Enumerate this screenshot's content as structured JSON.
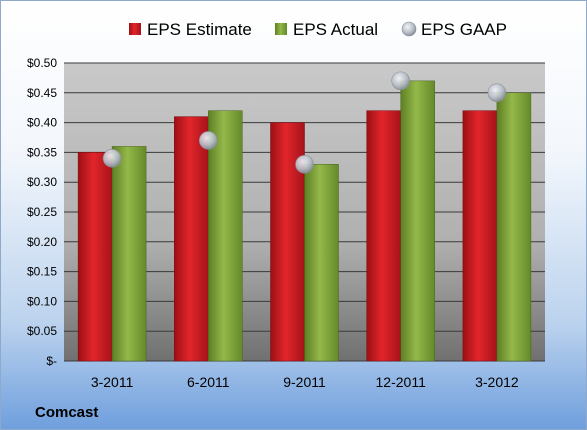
{
  "company": "Comcast",
  "colors": {
    "estimate": "#c8161d",
    "actual": "#7fa33a",
    "gaap": "#b8bec8"
  },
  "chart_data": {
    "type": "bar",
    "categories": [
      "3-2011",
      "6-2011",
      "9-2011",
      "12-2011",
      "3-2012"
    ],
    "series": [
      {
        "name": "EPS Estimate",
        "kind": "bar",
        "values": [
          0.35,
          0.41,
          0.4,
          0.42,
          0.42
        ]
      },
      {
        "name": "EPS Actual",
        "kind": "bar",
        "values": [
          0.36,
          0.42,
          0.33,
          0.47,
          0.45
        ]
      },
      {
        "name": "EPS GAAP",
        "kind": "scatter",
        "values": [
          0.34,
          0.37,
          0.33,
          0.47,
          0.45
        ]
      }
    ],
    "ylim": [
      0,
      0.5
    ],
    "yticks": [
      0,
      0.05,
      0.1,
      0.15,
      0.2,
      0.25,
      0.3,
      0.35,
      0.4,
      0.45,
      0.5
    ],
    "ytick_labels": [
      "$-",
      "$0.05",
      "$0.10",
      "$0.15",
      "$0.20",
      "$0.25",
      "$0.30",
      "$0.35",
      "$0.40",
      "$0.45",
      "$0.50"
    ],
    "legend_position": "top",
    "grid": true
  }
}
